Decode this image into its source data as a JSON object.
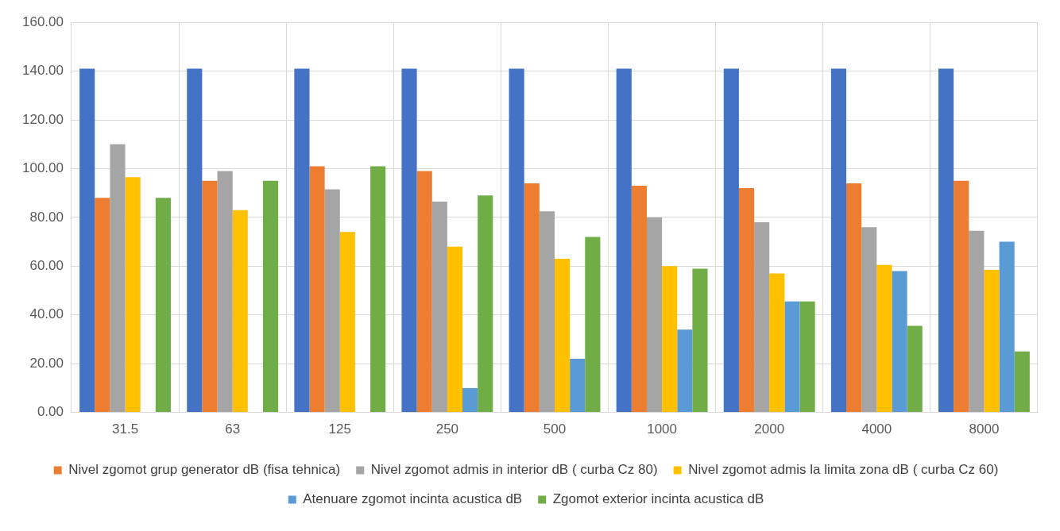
{
  "chart_data": {
    "type": "bar",
    "categories": [
      "31.5",
      "63",
      "125",
      "250",
      "500",
      "1000",
      "2000",
      "4000",
      "8000"
    ],
    "series": [
      {
        "color": "#4472c4",
        "values": [
          141,
          141,
          141,
          141,
          141,
          141,
          141,
          141,
          141
        ]
      },
      {
        "name": "Nivel zgomot grup generator dB (fisa tehnica)",
        "color": "#ed7d31",
        "values": [
          88,
          95,
          101,
          99,
          94,
          93,
          92,
          94,
          95
        ]
      },
      {
        "name": "Nivel zgomot admis in interior dB ( curba Cz 80)",
        "color": "#a5a5a5",
        "values": [
          110,
          99,
          91.5,
          86.5,
          82.5,
          80,
          78,
          76,
          74.5
        ]
      },
      {
        "name": "Nivel zgomot admis la limita zona dB ( curba Cz 60)",
        "color": "#ffc000",
        "values": [
          96.5,
          83,
          74,
          68,
          63,
          60,
          57,
          60.5,
          58.5
        ]
      },
      {
        "name": "Atenuare zgomot incinta acustica dB",
        "color": "#5b9bd5",
        "values": [
          null,
          null,
          null,
          10,
          22,
          34,
          45.5,
          58,
          70
        ]
      },
      {
        "name": "Zgomot exterior incinta acustica dB",
        "color": "#70ad47",
        "values": [
          88,
          95,
          101,
          89,
          72,
          59,
          45.5,
          35.5,
          25
        ]
      }
    ],
    "ylim": [
      0,
      160
    ],
    "yticks": [
      {
        "value": 0,
        "label": "0.00"
      },
      {
        "value": 20,
        "label": "20.00"
      },
      {
        "value": 40,
        "label": "40.00"
      },
      {
        "value": 60,
        "label": "60.00"
      },
      {
        "value": 80,
        "label": "80.00"
      },
      {
        "value": 100,
        "label": "100.00"
      },
      {
        "value": 120,
        "label": "120.00"
      },
      {
        "value": 140,
        "label": "140.00"
      },
      {
        "value": 160,
        "label": "160.00"
      }
    ],
    "grid": true,
    "legend": "bottom"
  }
}
